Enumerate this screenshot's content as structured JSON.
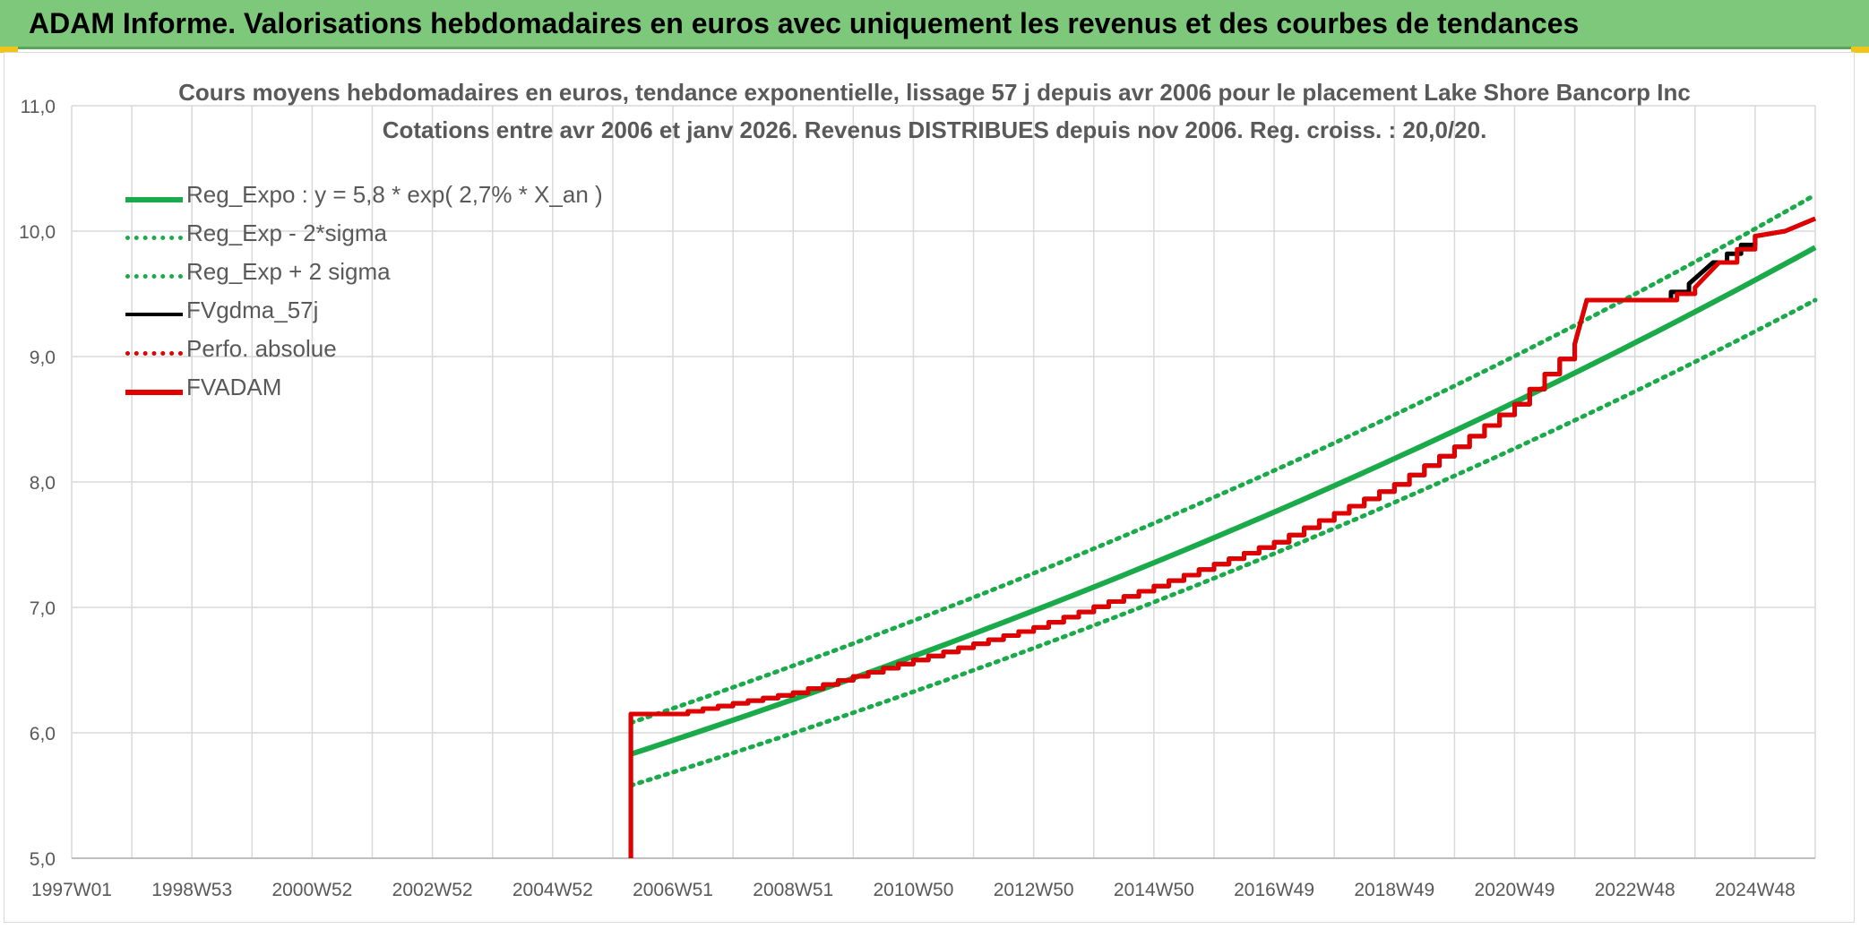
{
  "header": {
    "title": "ADAM Informe. Valorisations hebdomadaires en euros avec uniquement les revenus et des courbes de tendances"
  },
  "colors": {
    "header_bg": "#7dc87a",
    "trend": "#1aaa4a",
    "perf": "#e00000",
    "gdma": "#000000",
    "grid": "#d9d9d9",
    "text": "#595959"
  },
  "chart_data": {
    "type": "line",
    "title_line1": "Cours moyens hebdomadaires en euros, tendance exponentielle, lissage 57 j depuis avr 2006 pour le placement Lake Shore Bancorp Inc",
    "title_line2": "Cotations entre avr 2006 et janv 2026. Revenus DISTRIBUES depuis nov 2006. Reg. croiss. : 20,0/20.",
    "xlabel": "",
    "ylabel": "",
    "x_range": [
      "1997W01",
      "2025W52"
    ],
    "ylim": [
      5.0,
      11.0
    ],
    "y_ticks": [
      "11,0",
      "10,0",
      "9,0",
      "8,0",
      "7,0",
      "6,0",
      "5,0"
    ],
    "y_tick_values": [
      11,
      10,
      9,
      8,
      7,
      6,
      5
    ],
    "x_ticks": [
      "1997W01",
      "1998W53",
      "2000W52",
      "2002W52",
      "2004W52",
      "2006W51",
      "2008W51",
      "2010W50",
      "2012W50",
      "2014W50",
      "2016W49",
      "2018W49",
      "2020W49",
      "2022W48",
      "2024W48"
    ],
    "x_tick_years": [
      1997.0,
      1999.0,
      2001.0,
      2003.0,
      2005.0,
      2007.0,
      2009.0,
      2011.0,
      2013.0,
      2015.0,
      2017.0,
      2019.0,
      2021.0,
      2023.0,
      2025.0
    ],
    "x_grid_years": [
      1997.0,
      1998.0,
      1999.0,
      2000.0,
      2001.0,
      2002.0,
      2003.0,
      2004.0,
      2005.0,
      2006.0,
      2007.0,
      2008.0,
      2009.0,
      2010.0,
      2011.0,
      2012.0,
      2013.0,
      2014.0,
      2015.0,
      2016.0,
      2017.0,
      2018.0,
      2019.0,
      2020.0,
      2021.0,
      2022.0,
      2023.0,
      2024.0,
      2025.0,
      2026.0
    ],
    "grid": true,
    "legend_position": "top-left",
    "series": [
      {
        "name": "Reg_Expo : y = 5,8 * exp( 2,7% *  X_an )",
        "style": "solid-thick",
        "color": "#1aaa4a",
        "x": [
          2006.3,
          2026.0
        ],
        "y": [
          5.83,
          9.87
        ]
      },
      {
        "name": "Reg_Exp - 2*sigma",
        "style": "dotted",
        "color": "#1aaa4a",
        "x": [
          2006.3,
          2026.0
        ],
        "y": [
          5.58,
          9.45
        ]
      },
      {
        "name": "Reg_Exp + 2 sigma",
        "style": "dotted",
        "color": "#1aaa4a",
        "x": [
          2006.3,
          2026.0
        ],
        "y": [
          6.08,
          10.29
        ]
      },
      {
        "name": "FVgdma_57j",
        "style": "solid-thin",
        "color": "#000000",
        "x": [
          2006.3,
          2006.3,
          2007.0,
          2009.0,
          2011.0,
          2013.0,
          2015.0,
          2017.0,
          2019.0,
          2020.0,
          2021.0,
          2022.0,
          2022.2,
          2023.3,
          2023.9,
          2024.3,
          2025.0,
          2025.5,
          2026.0
        ],
        "y": [
          5.0,
          6.15,
          6.15,
          6.32,
          6.58,
          6.84,
          7.17,
          7.52,
          7.98,
          8.28,
          8.62,
          9.1,
          9.45,
          9.45,
          9.58,
          9.75,
          9.96,
          10.0,
          10.1
        ]
      },
      {
        "name": "Perfo. absolue",
        "style": "dotted",
        "color": "#e00000",
        "x": [
          2006.3,
          2006.3,
          2007.0,
          2009.0,
          2011.0,
          2013.0,
          2015.0,
          2017.0,
          2019.0,
          2020.0,
          2021.0,
          2022.0,
          2022.2,
          2023.4,
          2024.0,
          2024.4,
          2025.0,
          2025.5,
          2026.0
        ],
        "y": [
          5.0,
          6.15,
          6.15,
          6.32,
          6.58,
          6.84,
          7.17,
          7.52,
          7.98,
          8.28,
          8.62,
          9.1,
          9.45,
          9.45,
          9.55,
          9.75,
          9.96,
          10.0,
          10.1
        ]
      },
      {
        "name": "FVADAM",
        "style": "solid-step",
        "color": "#e00000",
        "x": [
          2006.3,
          2006.3,
          2007.0,
          2009.0,
          2011.0,
          2013.0,
          2015.0,
          2017.0,
          2019.0,
          2020.0,
          2021.0,
          2022.0,
          2022.2,
          2023.4,
          2024.0,
          2024.4,
          2025.0,
          2025.5,
          2026.0
        ],
        "y": [
          5.0,
          6.15,
          6.15,
          6.32,
          6.58,
          6.84,
          7.17,
          7.52,
          7.98,
          8.28,
          8.62,
          9.1,
          9.45,
          9.45,
          9.55,
          9.75,
          9.96,
          10.0,
          10.1
        ]
      }
    ]
  }
}
